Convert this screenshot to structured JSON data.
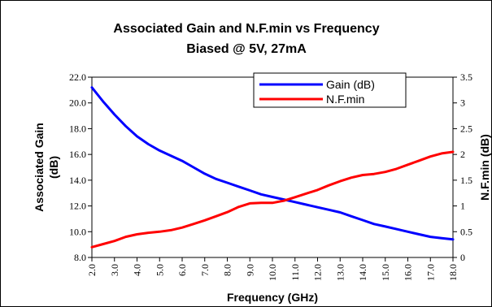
{
  "chart_data": {
    "type": "line",
    "title": "Associated Gain and N.F.min vs Frequency",
    "subtitle": "Biased @ 5V, 27mA",
    "xlabel": "Frequency (GHz)",
    "ylabel_left": "Associated Gain (dB)",
    "ylabel_left_lines": [
      "Associated Gain",
      "(dB)"
    ],
    "ylabel_right": "N.F.min (dB)",
    "xlim": [
      2,
      18
    ],
    "ylim_left": [
      8,
      22
    ],
    "ylim_right": [
      0,
      3.5
    ],
    "x_ticks": [
      "2.0",
      "3.0",
      "4.0",
      "5.0",
      "6.0",
      "7.0",
      "8.0",
      "9.0",
      "10.0",
      "11.0",
      "12.0",
      "13.0",
      "14.0",
      "15.0",
      "16.0",
      "17.0",
      "18.0"
    ],
    "y_left_ticks": [
      "8.0",
      "10.0",
      "12.0",
      "14.0",
      "16.0",
      "18.0",
      "20.0",
      "22.0"
    ],
    "y_right_ticks": [
      "0",
      "0.5",
      "1",
      "1.5",
      "2",
      "2.5",
      "3",
      "3.5"
    ],
    "grid": false,
    "legend_position": "top-center",
    "series": [
      {
        "name": "Gain (dB)",
        "axis": "left",
        "color": "#0000ff",
        "x": [
          2,
          2.5,
          3,
          3.5,
          4,
          4.5,
          5,
          5.5,
          6,
          6.5,
          7,
          7.5,
          8,
          8.5,
          9,
          9.5,
          10,
          10.5,
          11,
          11.5,
          12,
          12.5,
          13,
          13.5,
          14,
          14.5,
          15,
          15.5,
          16,
          16.5,
          17,
          17.5,
          18
        ],
        "y": [
          21.2,
          20.1,
          19.1,
          18.2,
          17.4,
          16.8,
          16.3,
          15.9,
          15.5,
          15.0,
          14.5,
          14.1,
          13.8,
          13.5,
          13.2,
          12.9,
          12.7,
          12.5,
          12.3,
          12.1,
          11.9,
          11.7,
          11.5,
          11.2,
          10.9,
          10.6,
          10.4,
          10.2,
          10.0,
          9.8,
          9.6,
          9.5,
          9.4
        ]
      },
      {
        "name": "N.F.min",
        "axis": "right",
        "color": "#ff0000",
        "x": [
          2,
          2.5,
          3,
          3.5,
          4,
          4.5,
          5,
          5.5,
          6,
          6.5,
          7,
          7.5,
          8,
          8.5,
          9,
          9.5,
          10,
          10.5,
          11,
          11.5,
          12,
          12.5,
          13,
          13.5,
          14,
          14.5,
          15,
          15.5,
          16,
          16.5,
          17,
          17.5,
          18
        ],
        "y": [
          0.2,
          0.26,
          0.32,
          0.4,
          0.45,
          0.48,
          0.5,
          0.53,
          0.58,
          0.65,
          0.72,
          0.8,
          0.88,
          0.98,
          1.05,
          1.06,
          1.06,
          1.1,
          1.17,
          1.24,
          1.31,
          1.4,
          1.48,
          1.55,
          1.6,
          1.62,
          1.66,
          1.72,
          1.8,
          1.88,
          1.96,
          2.02,
          2.05
        ]
      }
    ]
  }
}
